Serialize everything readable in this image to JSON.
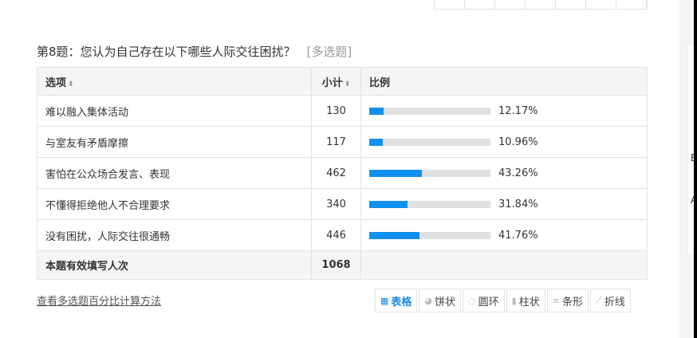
{
  "question": {
    "title": "第8题：您认为自己存在以下哪些人际交往困扰？",
    "tag": "[多选题]"
  },
  "table": {
    "headers": {
      "option": "选项",
      "count": "小计",
      "ratio": "比例"
    },
    "rows": [
      {
        "option": "难以融入集体活动",
        "count": "130",
        "percent": 12.17,
        "percent_label": "12.17%"
      },
      {
        "option": "与室友有矛盾摩擦",
        "count": "117",
        "percent": 10.96,
        "percent_label": "10.96%"
      },
      {
        "option": "害怕在公众场合发言、表现",
        "count": "462",
        "percent": 43.26,
        "percent_label": "43.26%"
      },
      {
        "option": "不懂得拒绝他人不合理要求",
        "count": "340",
        "percent": 31.84,
        "percent_label": "31.84%"
      },
      {
        "option": "没有困扰，人际交往很通畅",
        "count": "446",
        "percent": 41.76,
        "percent_label": "41.76%"
      }
    ],
    "footer": {
      "label": "本题有效填写人次",
      "count": "1068"
    }
  },
  "link": "查看多选题百分比计算方法",
  "chart_types": [
    {
      "label": "表格",
      "icon": "table-icon",
      "active": true
    },
    {
      "label": "饼状",
      "icon": "pie-icon"
    },
    {
      "label": "圆环",
      "icon": "ring-icon"
    },
    {
      "label": "柱状",
      "icon": "column-icon"
    },
    {
      "label": "条形",
      "icon": "bar-icon"
    },
    {
      "label": "折线",
      "icon": "line-icon"
    }
  ],
  "side_panel": {
    "letters": [
      "B",
      "A"
    ]
  },
  "colors": {
    "bar_fill": "#0f90ef",
    "bar_track": "#e0e0e0",
    "active": "#1e88e5"
  }
}
